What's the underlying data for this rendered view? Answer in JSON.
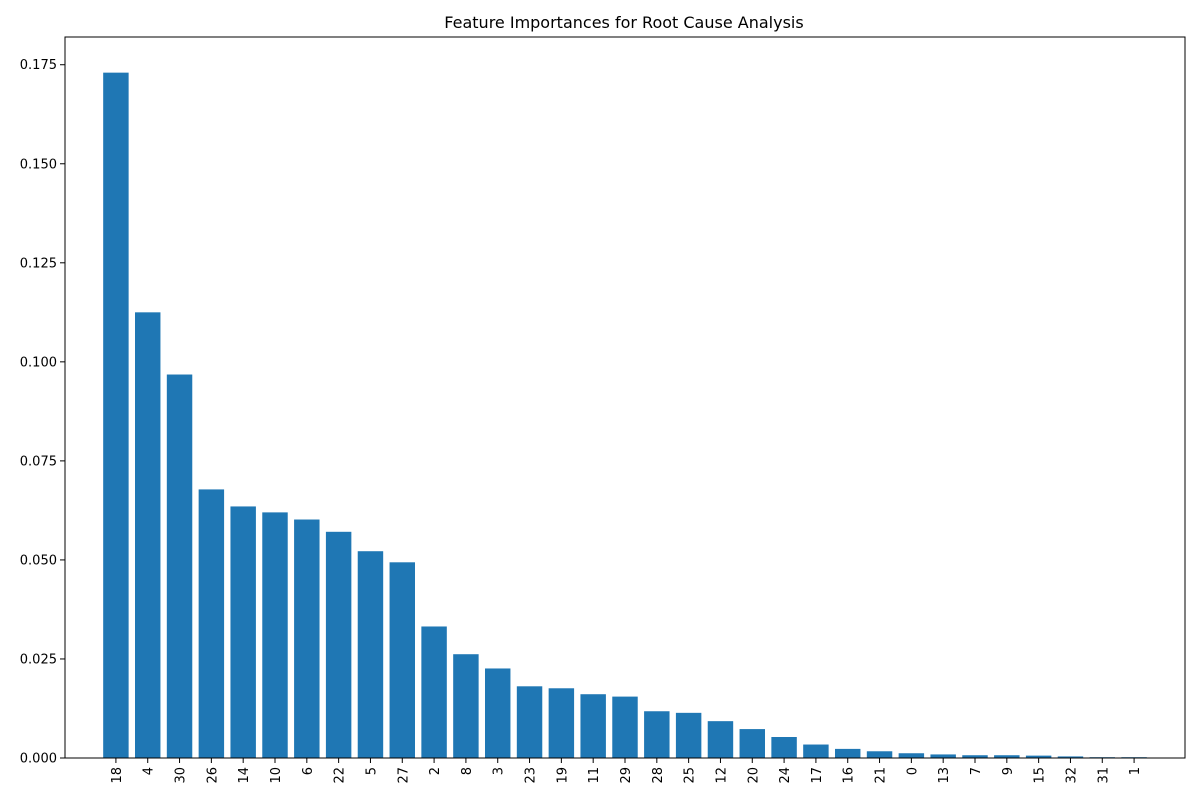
{
  "chart_data": {
    "type": "bar",
    "title": "Feature Importances for Root Cause Analysis",
    "xlabel": "",
    "ylabel": "",
    "ylim": [
      0,
      0.182
    ],
    "yticks": [
      "0.000",
      "0.025",
      "0.050",
      "0.075",
      "0.100",
      "0.125",
      "0.150",
      "0.175"
    ],
    "categories": [
      "18",
      "4",
      "30",
      "26",
      "14",
      "10",
      "6",
      "22",
      "5",
      "27",
      "2",
      "8",
      "3",
      "23",
      "19",
      "11",
      "29",
      "28",
      "25",
      "12",
      "20",
      "24",
      "17",
      "16",
      "21",
      "0",
      "13",
      "7",
      "9",
      "15",
      "32",
      "31",
      "1"
    ],
    "values": [
      0.173,
      0.1125,
      0.0968,
      0.0678,
      0.0635,
      0.062,
      0.0602,
      0.0571,
      0.0522,
      0.0494,
      0.0332,
      0.0262,
      0.0226,
      0.0181,
      0.0176,
      0.0161,
      0.0155,
      0.0118,
      0.0114,
      0.0093,
      0.0073,
      0.0053,
      0.0034,
      0.0023,
      0.0017,
      0.0012,
      0.0009,
      0.0007,
      0.0007,
      0.0006,
      0.0004,
      0.0002,
      0.0002
    ],
    "grid": false,
    "legend": "none",
    "colors": {
      "bar": "#1f77b4",
      "axis": "#000000",
      "background": "#ffffff"
    }
  }
}
